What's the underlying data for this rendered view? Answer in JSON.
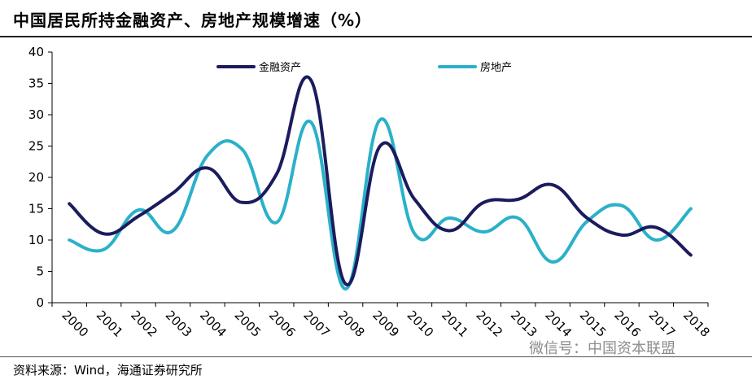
{
  "header": {
    "title": "中国居民所持金融资产、房地产规模增速（%）"
  },
  "footer": {
    "source": "资料来源：Wind，海通证券研究所"
  },
  "watermark": {
    "text": "微信号：中国资本联盟"
  },
  "chart_data": {
    "type": "line",
    "title": "中国居民所持金融资产、房地产规模增速（%）",
    "categories": [
      "2000",
      "2001",
      "2002",
      "2003",
      "2004",
      "2005",
      "2006",
      "2007",
      "2008",
      "2009",
      "2010",
      "2011",
      "2012",
      "2013",
      "2014",
      "2015",
      "2016",
      "2017",
      "2018"
    ],
    "ylim": [
      0,
      40
    ],
    "yticks": [
      0,
      5,
      10,
      15,
      20,
      25,
      30,
      35,
      40
    ],
    "grid": false,
    "legend_position": "top",
    "series": [
      {
        "name": "金融资产",
        "color": "#1b1b5e",
        "values": [
          15.8,
          11.0,
          13.8,
          17.5,
          21.5,
          16.0,
          20.5,
          35.5,
          3.0,
          25.0,
          16.5,
          11.5,
          16.0,
          16.5,
          18.8,
          13.5,
          10.8,
          12.0,
          7.6
        ]
      },
      {
        "name": "房地产",
        "color": "#2ab1c9",
        "values": [
          10.0,
          8.5,
          14.8,
          11.5,
          23.5,
          24.5,
          12.8,
          28.8,
          2.2,
          29.2,
          11.0,
          13.5,
          11.3,
          13.5,
          6.5,
          13.0,
          15.5,
          10.0,
          15.0
        ]
      }
    ]
  }
}
